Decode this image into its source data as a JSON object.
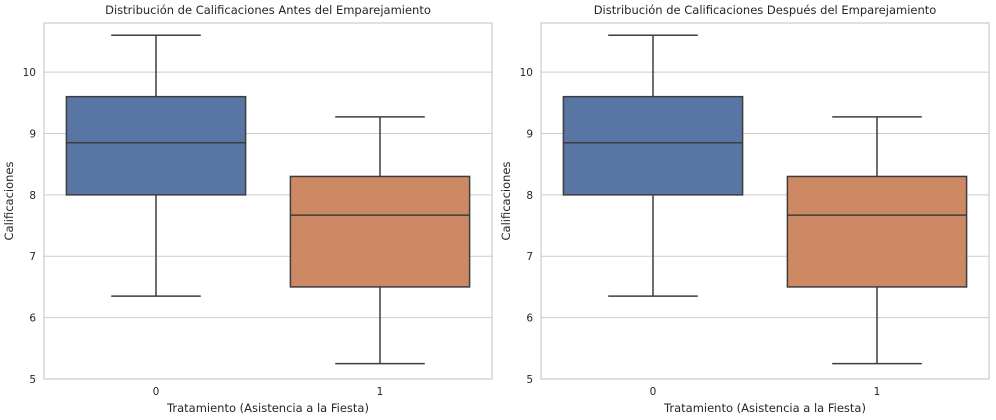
{
  "chart_data": [
    {
      "type": "box",
      "title": "Distribución de Calificaciones Antes del Emparejamiento",
      "xlabel": "Tratamiento (Asistencia a la Fiesta)",
      "ylabel": "Calificaciones",
      "categories": [
        "0",
        "1"
      ],
      "yticks": [
        "5",
        "6",
        "7",
        "8",
        "9",
        "10"
      ],
      "ylim": [
        5,
        10.8
      ],
      "grid": "horizontal",
      "boxes": [
        {
          "category": "0",
          "whisker_low": 6.35,
          "q1": 8.0,
          "median": 8.85,
          "q3": 9.6,
          "whisker_high": 10.6,
          "color": "#5875a4"
        },
        {
          "category": "1",
          "whisker_low": 5.25,
          "q1": 6.5,
          "median": 7.67,
          "q3": 8.3,
          "whisker_high": 9.27,
          "color": "#cc8963"
        }
      ]
    },
    {
      "type": "box",
      "title": "Distribución de Calificaciones Después del Emparejamiento",
      "xlabel": "Tratamiento (Asistencia a la Fiesta)",
      "ylabel": "Calificaciones",
      "categories": [
        "0",
        "1"
      ],
      "yticks": [
        "5",
        "6",
        "7",
        "8",
        "9",
        "10"
      ],
      "ylim": [
        5,
        10.8
      ],
      "grid": "horizontal",
      "boxes": [
        {
          "category": "0",
          "whisker_low": 6.35,
          "q1": 8.0,
          "median": 8.85,
          "q3": 9.6,
          "whisker_high": 10.6,
          "color": "#5875a4"
        },
        {
          "category": "1",
          "whisker_low": 5.25,
          "q1": 6.5,
          "median": 7.67,
          "q3": 8.3,
          "whisker_high": 9.27,
          "color": "#cc8963"
        }
      ]
    }
  ],
  "colors": {
    "grid": "#cccccc",
    "spine": "#cccccc",
    "line": "#3d3d3d"
  }
}
